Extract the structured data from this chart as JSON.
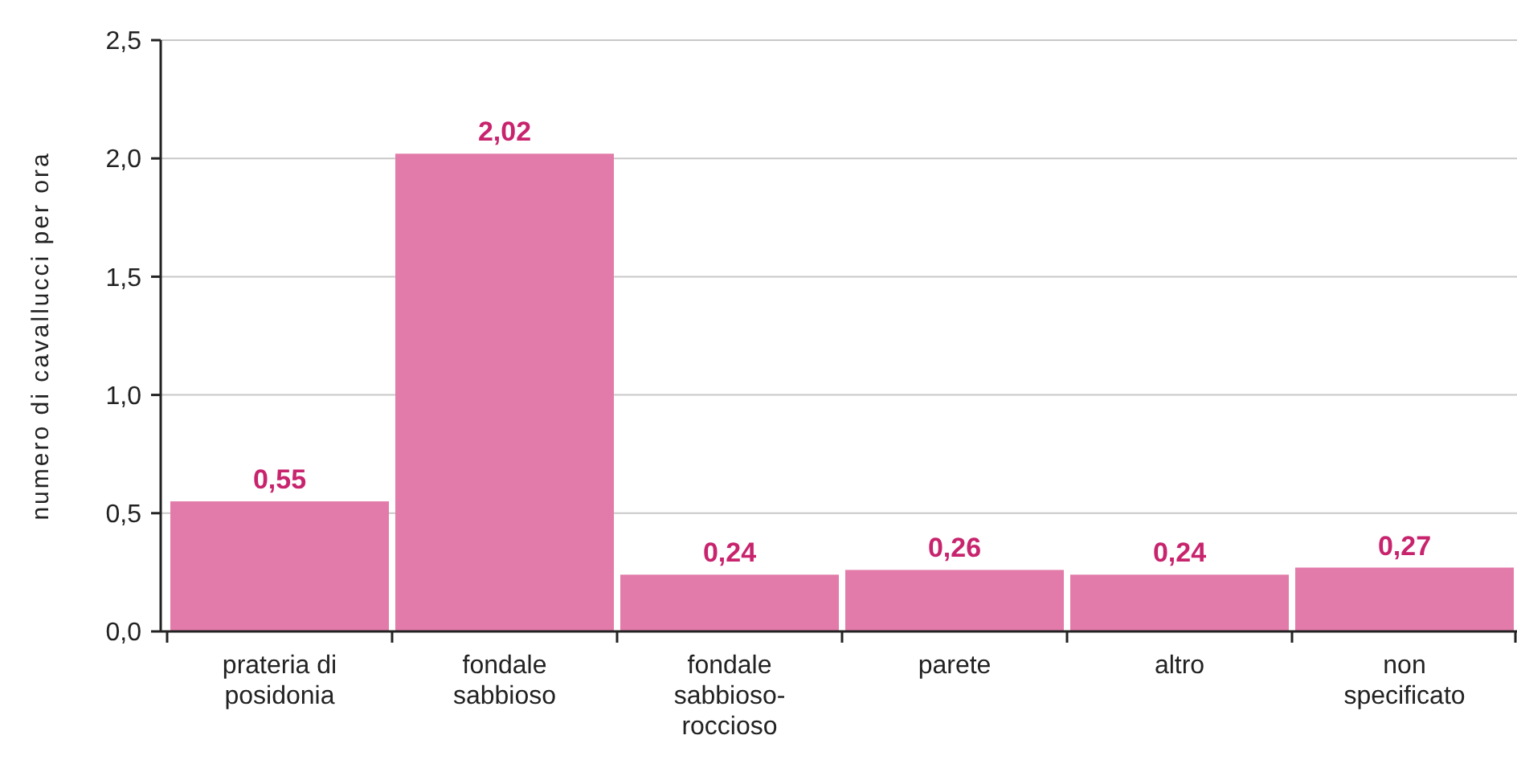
{
  "chart_data": {
    "type": "bar",
    "ylabel": "numero di cavallucci per ora",
    "categories": [
      "prateria di\nposidonia",
      "fondale\nsabbioso",
      "fondale\nsabbioso-\nroccioso",
      "parete",
      "altro",
      "non\nspecificato"
    ],
    "values": [
      0.55,
      2.02,
      0.24,
      0.26,
      0.24,
      0.27
    ],
    "value_labels": [
      "0,55",
      "2,02",
      "0,24",
      "0,26",
      "0,24",
      "0,27"
    ],
    "color": "#e27ba9",
    "ylim": [
      0,
      2.5
    ],
    "yticks": [
      {
        "value": 0,
        "label": "0,0"
      },
      {
        "value": 0.5,
        "label": "0,5"
      },
      {
        "value": 1,
        "label": "1,0"
      },
      {
        "value": 1.5,
        "label": "1,5"
      },
      {
        "value": 2,
        "label": "2,0"
      },
      {
        "value": 2.5,
        "label": "2,5"
      }
    ],
    "grid": "y"
  }
}
